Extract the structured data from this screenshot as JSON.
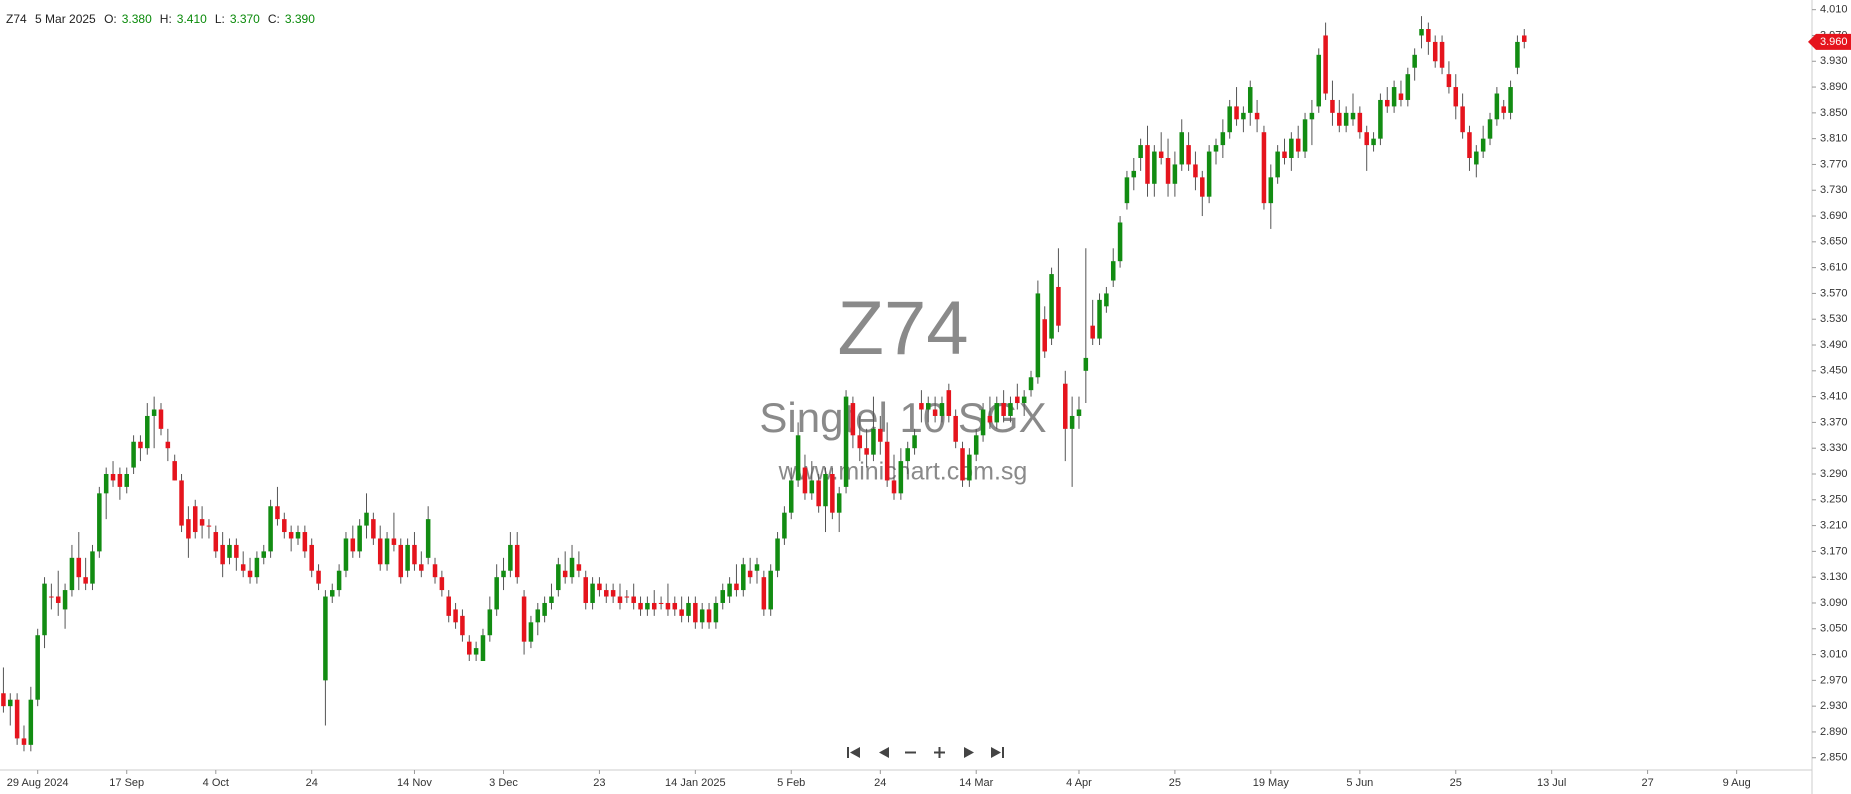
{
  "chart_data": {
    "type": "candlestick",
    "header": {
      "symbol": "Z74",
      "date": "5 Mar 2025",
      "fields": [
        {
          "label": "O:",
          "value": "3.380"
        },
        {
          "label": "H:",
          "value": "3.410"
        },
        {
          "label": "L:",
          "value": "3.370"
        },
        {
          "label": "C:",
          "value": "3.390"
        }
      ]
    },
    "watermark": {
      "title": "Z74",
      "subtitle": "Singtel 10 SGX",
      "url": "www.minichart.com.sg"
    },
    "up_color": "#128c12",
    "down_color": "#e5141d",
    "wick_color": "#555555",
    "ohlc": [
      [
        2.95,
        2.99,
        2.92,
        2.93
      ],
      [
        2.93,
        2.95,
        2.9,
        2.94
      ],
      [
        2.94,
        2.95,
        2.87,
        2.88
      ],
      [
        2.88,
        2.9,
        2.86,
        2.87
      ],
      [
        2.87,
        2.96,
        2.86,
        2.94
      ],
      [
        2.94,
        3.05,
        2.93,
        3.04
      ],
      [
        3.04,
        3.13,
        3.02,
        3.12
      ],
      [
        3.1,
        3.12,
        3.08,
        3.1
      ],
      [
        3.1,
        3.14,
        3.07,
        3.09
      ],
      [
        3.08,
        3.12,
        3.05,
        3.11
      ],
      [
        3.11,
        3.18,
        3.1,
        3.16
      ],
      [
        3.16,
        3.2,
        3.11,
        3.13
      ],
      [
        3.13,
        3.16,
        3.11,
        3.12
      ],
      [
        3.12,
        3.18,
        3.11,
        3.17
      ],
      [
        3.17,
        3.27,
        3.16,
        3.26
      ],
      [
        3.26,
        3.3,
        3.22,
        3.29
      ],
      [
        3.29,
        3.31,
        3.27,
        3.28
      ],
      [
        3.29,
        3.3,
        3.25,
        3.27
      ],
      [
        3.27,
        3.3,
        3.26,
        3.29
      ],
      [
        3.3,
        3.35,
        3.29,
        3.34
      ],
      [
        3.34,
        3.35,
        3.31,
        3.33
      ],
      [
        3.33,
        3.4,
        3.32,
        3.38
      ],
      [
        3.38,
        3.41,
        3.33,
        3.39
      ],
      [
        3.39,
        3.4,
        3.35,
        3.36
      ],
      [
        3.34,
        3.36,
        3.31,
        3.33
      ],
      [
        3.31,
        3.32,
        3.28,
        3.28
      ],
      [
        3.28,
        3.29,
        3.2,
        3.21
      ],
      [
        3.22,
        3.24,
        3.16,
        3.19
      ],
      [
        3.24,
        3.25,
        3.19,
        3.2
      ],
      [
        3.22,
        3.24,
        3.19,
        3.21
      ],
      [
        3.21,
        3.22,
        3.19,
        3.21
      ],
      [
        3.2,
        3.21,
        3.16,
        3.17
      ],
      [
        3.18,
        3.2,
        3.13,
        3.15
      ],
      [
        3.16,
        3.19,
        3.15,
        3.18
      ],
      [
        3.18,
        3.19,
        3.14,
        3.16
      ],
      [
        3.15,
        3.17,
        3.13,
        3.14
      ],
      [
        3.14,
        3.16,
        3.12,
        3.13
      ],
      [
        3.13,
        3.17,
        3.12,
        3.16
      ],
      [
        3.16,
        3.18,
        3.15,
        3.17
      ],
      [
        3.17,
        3.25,
        3.16,
        3.24
      ],
      [
        3.24,
        3.27,
        3.21,
        3.22
      ],
      [
        3.22,
        3.23,
        3.19,
        3.2
      ],
      [
        3.2,
        3.21,
        3.17,
        3.19
      ],
      [
        3.19,
        3.21,
        3.18,
        3.2
      ],
      [
        3.2,
        3.21,
        3.16,
        3.17
      ],
      [
        3.18,
        3.19,
        3.13,
        3.14
      ],
      [
        3.14,
        3.15,
        3.11,
        3.12
      ],
      [
        2.97,
        3.11,
        2.9,
        3.1
      ],
      [
        3.1,
        3.12,
        3.09,
        3.11
      ],
      [
        3.11,
        3.15,
        3.1,
        3.14
      ],
      [
        3.14,
        3.2,
        3.13,
        3.19
      ],
      [
        3.19,
        3.21,
        3.16,
        3.17
      ],
      [
        3.17,
        3.22,
        3.16,
        3.21
      ],
      [
        3.21,
        3.26,
        3.19,
        3.23
      ],
      [
        3.22,
        3.23,
        3.18,
        3.19
      ],
      [
        3.19,
        3.21,
        3.14,
        3.15
      ],
      [
        3.15,
        3.2,
        3.14,
        3.19
      ],
      [
        3.19,
        3.23,
        3.17,
        3.18
      ],
      [
        3.18,
        3.19,
        3.12,
        3.13
      ],
      [
        3.14,
        3.19,
        3.13,
        3.18
      ],
      [
        3.18,
        3.2,
        3.14,
        3.15
      ],
      [
        3.15,
        3.17,
        3.13,
        3.14
      ],
      [
        3.16,
        3.24,
        3.15,
        3.22
      ],
      [
        3.15,
        3.16,
        3.12,
        3.13
      ],
      [
        3.13,
        3.14,
        3.1,
        3.11
      ],
      [
        3.1,
        3.11,
        3.06,
        3.07
      ],
      [
        3.08,
        3.09,
        3.05,
        3.06
      ],
      [
        3.07,
        3.08,
        3.03,
        3.04
      ],
      [
        3.03,
        3.04,
        3.0,
        3.01
      ],
      [
        3.01,
        3.03,
        3.0,
        3.02
      ],
      [
        3.0,
        3.05,
        3.0,
        3.04
      ],
      [
        3.04,
        3.1,
        3.03,
        3.08
      ],
      [
        3.08,
        3.15,
        3.07,
        3.13
      ],
      [
        3.13,
        3.16,
        3.11,
        3.14
      ],
      [
        3.14,
        3.2,
        3.13,
        3.18
      ],
      [
        3.18,
        3.2,
        3.12,
        3.13
      ],
      [
        3.1,
        3.11,
        3.01,
        3.03
      ],
      [
        3.03,
        3.07,
        3.02,
        3.06
      ],
      [
        3.06,
        3.09,
        3.04,
        3.08
      ],
      [
        3.07,
        3.1,
        3.06,
        3.09
      ],
      [
        3.09,
        3.12,
        3.08,
        3.1
      ],
      [
        3.11,
        3.16,
        3.1,
        3.15
      ],
      [
        3.14,
        3.17,
        3.12,
        3.13
      ],
      [
        3.13,
        3.18,
        3.12,
        3.16
      ],
      [
        3.15,
        3.17,
        3.13,
        3.14
      ],
      [
        3.13,
        3.14,
        3.08,
        3.09
      ],
      [
        3.09,
        3.13,
        3.08,
        3.12
      ],
      [
        3.12,
        3.13,
        3.1,
        3.11
      ],
      [
        3.11,
        3.12,
        3.09,
        3.1
      ],
      [
        3.11,
        3.12,
        3.09,
        3.1
      ],
      [
        3.1,
        3.12,
        3.08,
        3.09
      ],
      [
        3.1,
        3.11,
        3.09,
        3.1
      ],
      [
        3.1,
        3.12,
        3.08,
        3.09
      ],
      [
        3.09,
        3.1,
        3.07,
        3.08
      ],
      [
        3.08,
        3.1,
        3.07,
        3.09
      ],
      [
        3.09,
        3.11,
        3.07,
        3.08
      ],
      [
        3.09,
        3.1,
        3.08,
        3.09
      ],
      [
        3.09,
        3.12,
        3.07,
        3.08
      ],
      [
        3.09,
        3.1,
        3.07,
        3.08
      ],
      [
        3.08,
        3.1,
        3.06,
        3.07
      ],
      [
        3.07,
        3.1,
        3.06,
        3.09
      ],
      [
        3.09,
        3.1,
        3.05,
        3.06
      ],
      [
        3.06,
        3.09,
        3.05,
        3.08
      ],
      [
        3.08,
        3.09,
        3.05,
        3.06
      ],
      [
        3.06,
        3.1,
        3.05,
        3.09
      ],
      [
        3.09,
        3.12,
        3.08,
        3.11
      ],
      [
        3.1,
        3.13,
        3.09,
        3.12
      ],
      [
        3.12,
        3.15,
        3.1,
        3.11
      ],
      [
        3.11,
        3.16,
        3.1,
        3.15
      ],
      [
        3.14,
        3.16,
        3.12,
        3.13
      ],
      [
        3.14,
        3.16,
        3.12,
        3.15
      ],
      [
        3.13,
        3.14,
        3.07,
        3.08
      ],
      [
        3.08,
        3.15,
        3.07,
        3.14
      ],
      [
        3.14,
        3.2,
        3.13,
        3.19
      ],
      [
        3.19,
        3.24,
        3.18,
        3.23
      ],
      [
        3.23,
        3.3,
        3.22,
        3.28
      ],
      [
        3.28,
        3.37,
        3.27,
        3.35
      ],
      [
        3.3,
        3.32,
        3.25,
        3.26
      ],
      [
        3.26,
        3.31,
        3.25,
        3.28
      ],
      [
        3.28,
        3.29,
        3.23,
        3.24
      ],
      [
        3.24,
        3.3,
        3.2,
        3.29
      ],
      [
        3.29,
        3.3,
        3.22,
        3.23
      ],
      [
        3.23,
        3.27,
        3.2,
        3.26
      ],
      [
        3.27,
        3.42,
        3.26,
        3.41
      ],
      [
        3.4,
        3.41,
        3.33,
        3.35
      ],
      [
        3.35,
        3.38,
        3.31,
        3.33
      ],
      [
        3.33,
        3.36,
        3.3,
        3.32
      ],
      [
        3.32,
        3.41,
        3.31,
        3.36
      ],
      [
        3.36,
        3.38,
        3.32,
        3.34
      ],
      [
        3.34,
        3.37,
        3.27,
        3.28
      ],
      [
        3.28,
        3.32,
        3.25,
        3.26
      ],
      [
        3.26,
        3.33,
        3.25,
        3.31
      ],
      [
        3.31,
        3.34,
        3.29,
        3.33
      ],
      [
        3.33,
        3.36,
        3.32,
        3.35
      ],
      [
        3.4,
        3.42,
        3.37,
        3.39
      ],
      [
        3.39,
        3.41,
        3.37,
        3.4
      ],
      [
        3.39,
        3.41,
        3.37,
        3.38
      ],
      [
        3.38,
        3.41,
        3.37,
        3.4
      ],
      [
        3.42,
        3.43,
        3.37,
        3.38
      ],
      [
        3.38,
        3.39,
        3.33,
        3.34
      ],
      [
        3.33,
        3.34,
        3.27,
        3.28
      ],
      [
        3.28,
        3.33,
        3.27,
        3.32
      ],
      [
        3.32,
        3.36,
        3.31,
        3.35
      ],
      [
        3.35,
        3.4,
        3.34,
        3.39
      ],
      [
        3.38,
        3.41,
        3.36,
        3.37
      ],
      [
        3.37,
        3.41,
        3.36,
        3.4
      ],
      [
        3.4,
        3.42,
        3.37,
        3.38
      ],
      [
        3.38,
        3.41,
        3.37,
        3.4
      ],
      [
        3.41,
        3.43,
        3.39,
        3.4
      ],
      [
        3.4,
        3.42,
        3.38,
        3.41
      ],
      [
        3.42,
        3.45,
        3.41,
        3.44
      ],
      [
        3.44,
        3.59,
        3.43,
        3.57
      ],
      [
        3.53,
        3.55,
        3.47,
        3.48
      ],
      [
        3.5,
        3.61,
        3.49,
        3.6
      ],
      [
        3.58,
        3.64,
        3.51,
        3.52
      ],
      [
        3.43,
        3.45,
        3.31,
        3.36
      ],
      [
        3.36,
        3.41,
        3.27,
        3.38
      ],
      [
        3.38,
        3.41,
        3.36,
        3.39
      ],
      [
        3.45,
        3.64,
        3.4,
        3.47
      ],
      [
        3.52,
        3.56,
        3.49,
        3.5
      ],
      [
        3.5,
        3.57,
        3.49,
        3.56
      ],
      [
        3.55,
        3.58,
        3.54,
        3.57
      ],
      [
        3.59,
        3.64,
        3.58,
        3.62
      ],
      [
        3.62,
        3.69,
        3.61,
        3.68
      ],
      [
        3.71,
        3.76,
        3.7,
        3.75
      ],
      [
        3.75,
        3.78,
        3.73,
        3.76
      ],
      [
        3.78,
        3.81,
        3.76,
        3.8
      ],
      [
        3.8,
        3.83,
        3.72,
        3.74
      ],
      [
        3.74,
        3.8,
        3.72,
        3.79
      ],
      [
        3.79,
        3.82,
        3.77,
        3.78
      ],
      [
        3.78,
        3.81,
        3.72,
        3.74
      ],
      [
        3.74,
        3.79,
        3.72,
        3.77
      ],
      [
        3.77,
        3.84,
        3.76,
        3.82
      ],
      [
        3.8,
        3.82,
        3.76,
        3.77
      ],
      [
        3.77,
        3.79,
        3.73,
        3.75
      ],
      [
        3.75,
        3.76,
        3.69,
        3.72
      ],
      [
        3.72,
        3.8,
        3.71,
        3.79
      ],
      [
        3.79,
        3.81,
        3.77,
        3.8
      ],
      [
        3.8,
        3.84,
        3.78,
        3.82
      ],
      [
        3.82,
        3.87,
        3.81,
        3.86
      ],
      [
        3.86,
        3.89,
        3.83,
        3.84
      ],
      [
        3.84,
        3.86,
        3.82,
        3.85
      ],
      [
        3.85,
        3.9,
        3.83,
        3.89
      ],
      [
        3.85,
        3.87,
        3.82,
        3.84
      ],
      [
        3.82,
        3.83,
        3.7,
        3.71
      ],
      [
        3.71,
        3.77,
        3.67,
        3.75
      ],
      [
        3.75,
        3.8,
        3.74,
        3.79
      ],
      [
        3.79,
        3.81,
        3.77,
        3.78
      ],
      [
        3.78,
        3.82,
        3.76,
        3.81
      ],
      [
        3.81,
        3.83,
        3.78,
        3.79
      ],
      [
        3.79,
        3.85,
        3.78,
        3.84
      ],
      [
        3.84,
        3.87,
        3.8,
        3.85
      ],
      [
        3.86,
        3.95,
        3.85,
        3.94
      ],
      [
        3.97,
        3.99,
        3.87,
        3.88
      ],
      [
        3.87,
        3.9,
        3.83,
        3.85
      ],
      [
        3.85,
        3.87,
        3.82,
        3.83
      ],
      [
        3.83,
        3.86,
        3.82,
        3.85
      ],
      [
        3.84,
        3.88,
        3.83,
        3.85
      ],
      [
        3.85,
        3.86,
        3.81,
        3.82
      ],
      [
        3.82,
        3.83,
        3.76,
        3.8
      ],
      [
        3.8,
        3.82,
        3.79,
        3.81
      ],
      [
        3.81,
        3.88,
        3.8,
        3.87
      ],
      [
        3.87,
        3.89,
        3.85,
        3.86
      ],
      [
        3.86,
        3.9,
        3.85,
        3.89
      ],
      [
        3.88,
        3.9,
        3.86,
        3.87
      ],
      [
        3.87,
        3.92,
        3.86,
        3.91
      ],
      [
        3.92,
        3.95,
        3.9,
        3.94
      ],
      [
        3.97,
        4.0,
        3.95,
        3.98
      ],
      [
        3.98,
        3.99,
        3.94,
        3.96
      ],
      [
        3.96,
        3.97,
        3.92,
        3.93
      ],
      [
        3.96,
        3.97,
        3.91,
        3.92
      ],
      [
        3.91,
        3.93,
        3.88,
        3.89
      ],
      [
        3.89,
        3.91,
        3.84,
        3.86
      ],
      [
        3.86,
        3.88,
        3.81,
        3.82
      ],
      [
        3.82,
        3.83,
        3.76,
        3.78
      ],
      [
        3.77,
        3.8,
        3.75,
        3.79
      ],
      [
        3.79,
        3.83,
        3.78,
        3.81
      ],
      [
        3.81,
        3.85,
        3.8,
        3.84
      ],
      [
        3.84,
        3.89,
        3.83,
        3.88
      ],
      [
        3.86,
        3.87,
        3.84,
        3.85
      ],
      [
        3.85,
        3.9,
        3.84,
        3.89
      ],
      [
        3.92,
        3.97,
        3.91,
        3.96
      ],
      [
        3.97,
        3.98,
        3.95,
        3.96
      ]
    ],
    "last_price": {
      "value": 3.96,
      "label": "3.960"
    },
    "xlim": [
      -0.5,
      264
    ],
    "xticks": [
      {
        "value": 5,
        "label": "29 Aug 2024"
      },
      {
        "value": 18,
        "label": "17 Sep"
      },
      {
        "value": 31,
        "label": "4 Oct"
      },
      {
        "value": 45,
        "label": "24"
      },
      {
        "value": 60,
        "label": "14 Nov"
      },
      {
        "value": 73,
        "label": "3 Dec"
      },
      {
        "value": 87,
        "label": "23"
      },
      {
        "value": 101,
        "label": "14 Jan 2025"
      },
      {
        "value": 115,
        "label": "5 Feb"
      },
      {
        "value": 128,
        "label": "24"
      },
      {
        "value": 142,
        "label": "14 Mar"
      },
      {
        "value": 157,
        "label": "4 Apr"
      },
      {
        "value": 171,
        "label": "25"
      },
      {
        "value": 185,
        "label": "19 May"
      },
      {
        "value": 198,
        "label": "5 Jun"
      },
      {
        "value": 212,
        "label": "25"
      },
      {
        "value": 226,
        "label": "13 Jul"
      },
      {
        "value": 240,
        "label": "27"
      },
      {
        "value": 253,
        "label": "9 Aug"
      }
    ],
    "ylim": [
      2.831,
      4.025
    ],
    "yticks": [
      {
        "value": 2.85,
        "label": "2.850"
      },
      {
        "value": 2.89,
        "label": "2.890"
      },
      {
        "value": 2.93,
        "label": "2.930"
      },
      {
        "value": 2.97,
        "label": "2.970"
      },
      {
        "value": 3.01,
        "label": "3.010"
      },
      {
        "value": 3.05,
        "label": "3.050"
      },
      {
        "value": 3.09,
        "label": "3.090"
      },
      {
        "value": 3.13,
        "label": "3.130"
      },
      {
        "value": 3.17,
        "label": "3.170"
      },
      {
        "value": 3.21,
        "label": "3.210"
      },
      {
        "value": 3.25,
        "label": "3.250"
      },
      {
        "value": 3.29,
        "label": "3.290"
      },
      {
        "value": 3.33,
        "label": "3.330"
      },
      {
        "value": 3.37,
        "label": "3.370"
      },
      {
        "value": 3.41,
        "label": "3.410"
      },
      {
        "value": 3.45,
        "label": "3.450"
      },
      {
        "value": 3.49,
        "label": "3.490"
      },
      {
        "value": 3.53,
        "label": "3.530"
      },
      {
        "value": 3.57,
        "label": "3.570"
      },
      {
        "value": 3.61,
        "label": "3.610"
      },
      {
        "value": 3.65,
        "label": "3.650"
      },
      {
        "value": 3.69,
        "label": "3.690"
      },
      {
        "value": 3.73,
        "label": "3.730"
      },
      {
        "value": 3.77,
        "label": "3.770"
      },
      {
        "value": 3.81,
        "label": "3.810"
      },
      {
        "value": 3.85,
        "label": "3.850"
      },
      {
        "value": 3.89,
        "label": "3.890"
      },
      {
        "value": 3.93,
        "label": "3.930"
      },
      {
        "value": 3.97,
        "label": "3.970"
      },
      {
        "value": 4.01,
        "label": "4.010"
      }
    ],
    "grid": false
  }
}
